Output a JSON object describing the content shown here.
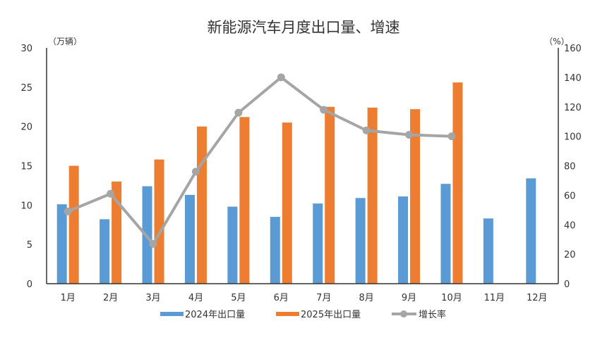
{
  "chart_data": {
    "type": "bar",
    "title": "新能源汽车月度出口量、增速",
    "ylabel_left": "（万辆）",
    "ylabel_right": "（%）",
    "categories": [
      "1月",
      "2月",
      "3月",
      "4月",
      "5月",
      "6月",
      "7月",
      "8月",
      "9月",
      "10月",
      "11月",
      "12月"
    ],
    "ylim_left": [
      0,
      30
    ],
    "yticks_left": [
      "0",
      "5",
      "10",
      "15",
      "20",
      "25",
      "30"
    ],
    "ylim_right": [
      0,
      160
    ],
    "yticks_right": [
      "0",
      "20",
      "40",
      "60",
      "80",
      "100",
      "120",
      "140",
      "160"
    ],
    "grid": false,
    "legend_position": "bottom",
    "series": [
      {
        "name": "2024年出口量",
        "type": "bar",
        "axis": "left",
        "color": "#5b9bd5",
        "values": [
          10.1,
          8.2,
          12.4,
          11.3,
          9.8,
          8.5,
          10.2,
          10.9,
          11.1,
          12.7,
          8.3,
          13.4
        ]
      },
      {
        "name": "2025年出口量",
        "type": "bar",
        "axis": "left",
        "color": "#ed7d31",
        "values": [
          15.0,
          13.0,
          15.8,
          20.0,
          21.2,
          20.5,
          22.5,
          22.4,
          22.2,
          25.6,
          null,
          null
        ]
      },
      {
        "name": "增长率",
        "type": "line",
        "axis": "right",
        "color": "#a5a5a5",
        "values": [
          49,
          61,
          27,
          76,
          116,
          140,
          118,
          104,
          101,
          100,
          null,
          null
        ]
      }
    ]
  }
}
